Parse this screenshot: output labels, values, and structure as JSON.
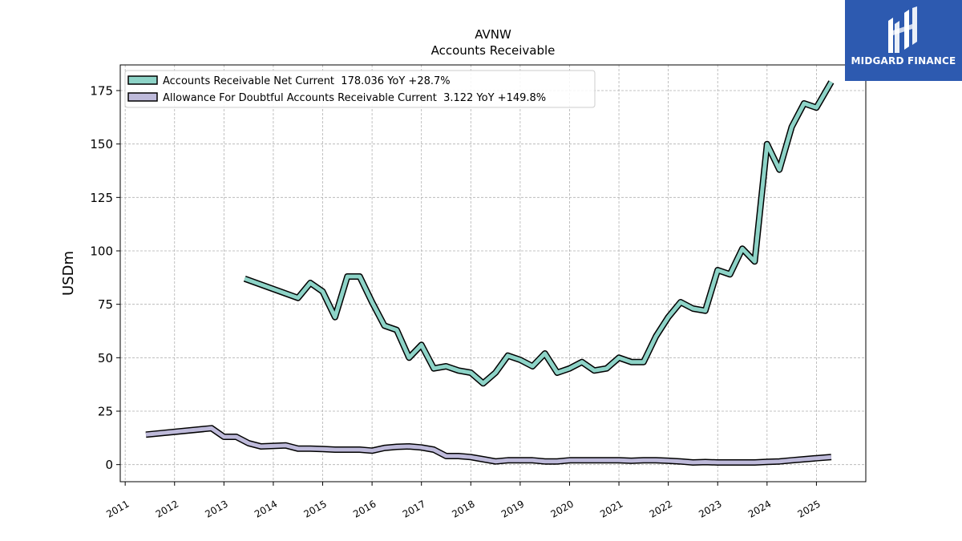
{
  "chart_data": {
    "type": "line",
    "title": "AVNW",
    "subtitle": "Accounts Receivable",
    "ylabel": "USDm",
    "xlabel": "",
    "ylim": [
      -8,
      187
    ],
    "xlim": [
      2010.9,
      2026.0
    ],
    "yticks": [
      0,
      25,
      50,
      75,
      100,
      125,
      150,
      175
    ],
    "xticks": [
      "2011",
      "2012",
      "2013",
      "2014",
      "2015",
      "2016",
      "2017",
      "2018",
      "2019",
      "2020",
      "2021",
      "2022",
      "2023",
      "2024",
      "2025"
    ],
    "grid": true,
    "legend_position": "top-left",
    "series": [
      {
        "name": "Accounts Receivable Net Current  178.036 YoY +28.7%",
        "color": "#8dd3c7",
        "points": [
          [
            2013.42,
            87
          ],
          [
            2014.5,
            78
          ],
          [
            2014.75,
            85
          ],
          [
            2015.0,
            81
          ],
          [
            2015.25,
            69
          ],
          [
            2015.5,
            88
          ],
          [
            2015.75,
            88
          ],
          [
            2016.0,
            76
          ],
          [
            2016.25,
            65
          ],
          [
            2016.5,
            63
          ],
          [
            2016.75,
            50
          ],
          [
            2017.0,
            56
          ],
          [
            2017.25,
            45
          ],
          [
            2017.5,
            46
          ],
          [
            2017.75,
            44
          ],
          [
            2018.0,
            43
          ],
          [
            2018.25,
            38
          ],
          [
            2018.5,
            43
          ],
          [
            2018.75,
            51
          ],
          [
            2019.0,
            49
          ],
          [
            2019.25,
            46
          ],
          [
            2019.5,
            52
          ],
          [
            2019.75,
            43
          ],
          [
            2020.0,
            45
          ],
          [
            2020.25,
            48
          ],
          [
            2020.5,
            44
          ],
          [
            2020.75,
            45
          ],
          [
            2021.0,
            50
          ],
          [
            2021.25,
            48
          ],
          [
            2021.5,
            48
          ],
          [
            2021.75,
            60
          ],
          [
            2022.0,
            69
          ],
          [
            2022.25,
            76
          ],
          [
            2022.5,
            73
          ],
          [
            2022.75,
            72
          ],
          [
            2023.0,
            91
          ],
          [
            2023.25,
            89
          ],
          [
            2023.5,
            101
          ],
          [
            2023.75,
            95
          ],
          [
            2024.0,
            150
          ],
          [
            2024.25,
            138
          ],
          [
            2024.5,
            158
          ],
          [
            2024.75,
            169
          ],
          [
            2025.0,
            167
          ],
          [
            2025.3,
            179
          ]
        ]
      },
      {
        "name": "Allowance For Doubtful Accounts Receivable Current  3.122 YoY +149.8%",
        "color": "#bebada",
        "points": [
          [
            2011.42,
            14
          ],
          [
            2012.75,
            17
          ],
          [
            2013.0,
            13
          ],
          [
            2013.25,
            13
          ],
          [
            2013.5,
            10
          ],
          [
            2013.75,
            8.5
          ],
          [
            2014.25,
            9
          ],
          [
            2014.5,
            7.5
          ],
          [
            2014.75,
            7.5
          ],
          [
            2015.0,
            7.3
          ],
          [
            2015.25,
            7
          ],
          [
            2015.5,
            7
          ],
          [
            2015.75,
            7
          ],
          [
            2016.0,
            6.5
          ],
          [
            2016.25,
            7.8
          ],
          [
            2016.5,
            8.3
          ],
          [
            2016.75,
            8.5
          ],
          [
            2017.0,
            8
          ],
          [
            2017.25,
            7
          ],
          [
            2017.5,
            4
          ],
          [
            2017.75,
            4
          ],
          [
            2018.0,
            3.5
          ],
          [
            2018.25,
            2.5
          ],
          [
            2018.5,
            1.5
          ],
          [
            2018.75,
            2
          ],
          [
            2019.0,
            2
          ],
          [
            2019.25,
            2
          ],
          [
            2019.5,
            1.5
          ],
          [
            2019.75,
            1.5
          ],
          [
            2020.0,
            2
          ],
          [
            2020.25,
            2
          ],
          [
            2020.5,
            2
          ],
          [
            2020.75,
            2
          ],
          [
            2021.0,
            2
          ],
          [
            2021.25,
            1.8
          ],
          [
            2021.5,
            2
          ],
          [
            2021.75,
            2
          ],
          [
            2022.0,
            1.8
          ],
          [
            2022.25,
            1.5
          ],
          [
            2022.5,
            1
          ],
          [
            2022.75,
            1.2
          ],
          [
            2023.0,
            1
          ],
          [
            2023.25,
            1
          ],
          [
            2023.5,
            1
          ],
          [
            2023.75,
            1
          ],
          [
            2024.0,
            1.3
          ],
          [
            2024.25,
            1.5
          ],
          [
            2024.5,
            2
          ],
          [
            2024.75,
            2.5
          ],
          [
            2025.0,
            3
          ],
          [
            2025.3,
            3.5
          ]
        ]
      }
    ]
  },
  "logo": {
    "text": "MIDGARD FINANCE",
    "background": "#2d5ab0"
  }
}
